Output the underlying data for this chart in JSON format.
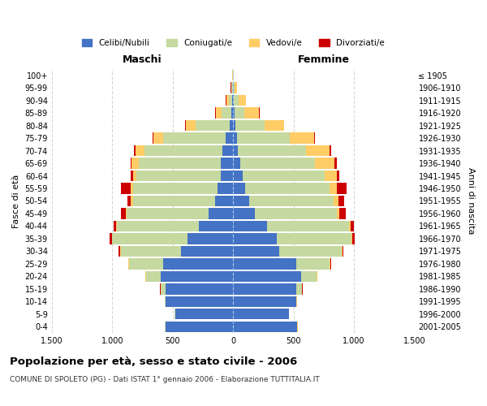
{
  "age_groups": [
    "0-4",
    "5-9",
    "10-14",
    "15-19",
    "20-24",
    "25-29",
    "30-34",
    "35-39",
    "40-44",
    "45-49",
    "50-54",
    "55-59",
    "60-64",
    "65-69",
    "70-74",
    "75-79",
    "80-84",
    "85-89",
    "90-94",
    "95-99",
    "100+"
  ],
  "birth_years": [
    "2001-2005",
    "1996-2000",
    "1991-1995",
    "1986-1990",
    "1981-1985",
    "1976-1980",
    "1971-1975",
    "1966-1970",
    "1961-1965",
    "1956-1960",
    "1951-1955",
    "1946-1950",
    "1941-1945",
    "1936-1940",
    "1931-1935",
    "1926-1930",
    "1921-1925",
    "1916-1920",
    "1911-1915",
    "1906-1910",
    "≤ 1905"
  ],
  "male": {
    "celibe": [
      560,
      480,
      560,
      560,
      600,
      580,
      430,
      380,
      280,
      200,
      150,
      130,
      100,
      100,
      90,
      60,
      30,
      15,
      8,
      3,
      2
    ],
    "coniugato": [
      2,
      2,
      5,
      40,
      120,
      280,
      500,
      620,
      680,
      680,
      680,
      700,
      700,
      680,
      640,
      520,
      280,
      80,
      30,
      10,
      2
    ],
    "vedovo": [
      1,
      1,
      2,
      2,
      5,
      5,
      5,
      5,
      5,
      10,
      15,
      20,
      30,
      60,
      80,
      80,
      80,
      50,
      20,
      5,
      1
    ],
    "divorziato": [
      1,
      1,
      1,
      2,
      2,
      5,
      10,
      20,
      20,
      40,
      30,
      80,
      15,
      10,
      10,
      8,
      5,
      5,
      2,
      1,
      0
    ]
  },
  "female": {
    "nubile": [
      530,
      460,
      520,
      520,
      560,
      520,
      380,
      360,
      280,
      180,
      130,
      100,
      80,
      60,
      40,
      30,
      20,
      15,
      8,
      4,
      2
    ],
    "coniugata": [
      2,
      2,
      5,
      50,
      130,
      280,
      520,
      620,
      680,
      680,
      700,
      700,
      680,
      620,
      560,
      440,
      240,
      80,
      35,
      10,
      2
    ],
    "vedova": [
      1,
      1,
      2,
      2,
      5,
      5,
      5,
      8,
      10,
      20,
      40,
      60,
      100,
      160,
      200,
      200,
      160,
      120,
      60,
      15,
      2
    ],
    "divorziata": [
      1,
      1,
      1,
      2,
      2,
      5,
      10,
      20,
      30,
      50,
      50,
      80,
      20,
      15,
      10,
      8,
      5,
      5,
      2,
      1,
      0
    ]
  },
  "colors": {
    "celibe": "#4472C4",
    "coniugato": "#c5d9a0",
    "vedovo": "#FFCC66",
    "divorziato": "#CC0000"
  },
  "title": "Popolazione per età, sesso e stato civile - 2006",
  "subtitle": "COMUNE DI SPOLETO (PG) - Dati ISTAT 1° gennaio 2006 - Elaborazione TUTTITALIA.IT",
  "xlabel_left": "Maschi",
  "xlabel_right": "Femmine",
  "ylabel": "Fasce di età",
  "ylabel_right": "Anni di nascita",
  "xlim": 1500,
  "xticks": [
    -1500,
    -1000,
    -500,
    0,
    500,
    1000,
    1500
  ],
  "xticklabels": [
    "1.500",
    "1.000",
    "500",
    "0",
    "500",
    "1.000",
    "1.500"
  ],
  "background_color": "#ffffff",
  "bar_height": 0.85
}
